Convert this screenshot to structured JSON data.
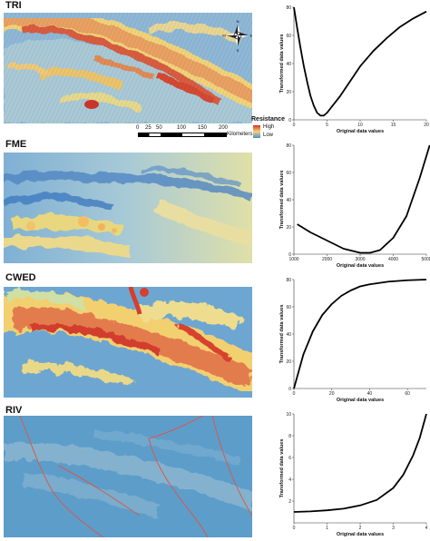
{
  "panels": [
    {
      "label": "TRI"
    },
    {
      "label": "FME"
    },
    {
      "label": "CWED"
    },
    {
      "label": "RIV"
    }
  ],
  "legend": {
    "title": "Resistance",
    "high": "High",
    "low": "Low"
  },
  "scale_bar": {
    "ticks": [
      "0",
      "25",
      "50",
      "100",
      "150",
      "200"
    ],
    "unit": "Kilometers"
  },
  "compass": {
    "n": "N",
    "s": "S",
    "e": "E",
    "w": "W"
  },
  "chart_data": [
    {
      "type": "line",
      "xlabel": "Original data values",
      "ylabel": "Transformed data values",
      "xlim": [
        0,
        20
      ],
      "ylim": [
        0,
        80
      ],
      "xticks": [
        "0",
        "5",
        "10",
        "15",
        "20"
      ],
      "yticks": [
        "0",
        "20",
        "40",
        "60",
        "80"
      ],
      "x": [
        0,
        0.5,
        1,
        1.5,
        2,
        2.5,
        3,
        3.5,
        4,
        4.5,
        5,
        6,
        7,
        8,
        9,
        10,
        12,
        14,
        16,
        18,
        20
      ],
      "y": [
        80,
        65,
        51,
        38,
        27,
        17,
        10,
        5,
        3,
        3,
        5,
        11,
        17,
        24,
        31,
        38,
        49,
        58,
        66,
        72,
        77
      ]
    },
    {
      "type": "line",
      "xlabel": "Original data values",
      "ylabel": "Transformed data values",
      "xlim": [
        1000,
        5000
      ],
      "ylim": [
        0,
        80
      ],
      "xticks": [
        "1000",
        "2000",
        "3000",
        "4000",
        "5000"
      ],
      "yticks": [
        "0",
        "20",
        "40",
        "60",
        "80"
      ],
      "x": [
        1100,
        1500,
        2000,
        2500,
        3000,
        3300,
        3600,
        4000,
        4400,
        4800,
        5100
      ],
      "y": [
        22,
        16,
        10,
        4,
        1,
        1,
        3,
        12,
        28,
        56,
        80
      ]
    },
    {
      "type": "line",
      "xlabel": "Original data values",
      "ylabel": "Transformed data values",
      "xlim": [
        0,
        70
      ],
      "ylim": [
        0,
        80
      ],
      "xticks": [
        "0",
        "20",
        "40",
        "60"
      ],
      "yticks": [
        "0",
        "20",
        "40",
        "60",
        "80"
      ],
      "x": [
        0,
        5,
        10,
        15,
        20,
        25,
        30,
        35,
        40,
        50,
        60,
        70
      ],
      "y": [
        0,
        25,
        42,
        54,
        62,
        68,
        72,
        75,
        76.5,
        78.5,
        79.5,
        80
      ]
    },
    {
      "type": "line",
      "xlabel": "Original data values",
      "ylabel": "Transformed data values",
      "xlim": [
        0,
        4
      ],
      "ylim": [
        0,
        10
      ],
      "xticks": [
        "0",
        "1",
        "2",
        "3",
        "4"
      ],
      "yticks": [
        "2",
        "4",
        "6",
        "8",
        "10"
      ],
      "x": [
        0,
        0.5,
        1,
        1.5,
        2,
        2.5,
        3,
        3.3,
        3.6,
        3.8,
        4
      ],
      "y": [
        1,
        1.05,
        1.15,
        1.3,
        1.6,
        2.1,
        3.2,
        4.4,
        6.2,
        7.8,
        10
      ]
    }
  ]
}
